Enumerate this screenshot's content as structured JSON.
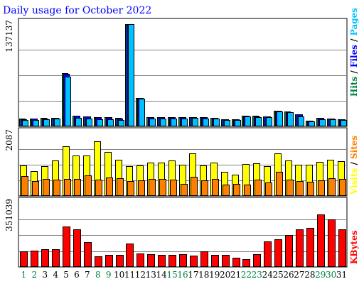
{
  "chart_data": {
    "type": "bar",
    "title": "Daily usage for October 2022",
    "categories": [
      "1",
      "2",
      "3",
      "4",
      "5",
      "6",
      "7",
      "8",
      "9",
      "10",
      "11",
      "12",
      "13",
      "14",
      "15",
      "16",
      "17",
      "18",
      "19",
      "20",
      "21",
      "22",
      "23",
      "24",
      "25",
      "26",
      "27",
      "28",
      "29",
      "30",
      "31"
    ],
    "weekend_days": [
      "1",
      "2",
      "8",
      "9",
      "15",
      "16",
      "22",
      "23",
      "29",
      "30"
    ],
    "panels": [
      {
        "id": "hits-files-pages",
        "axis_label": "137137",
        "ymax": 137137,
        "grid": true,
        "series": [
          {
            "name": "Hits",
            "color": "#008040",
            "values": [
              10100,
              10300,
              11000,
              11700,
              71000,
              14600,
              13500,
              12500,
              12300,
              11000,
              137137,
              38200,
              12700,
              12600,
              12400,
              12500,
              12800,
              12300,
              11800,
              9900,
              9800,
              14100,
              14000,
              13100,
              21200,
              19800,
              16200,
              8000,
              11400,
              10800,
              9600
            ]
          },
          {
            "name": "Files",
            "color": "#0000ff",
            "values": [
              9900,
              10100,
              10800,
              11500,
              70300,
              14400,
              13200,
              12300,
              12100,
              10800,
              136500,
              37800,
              12500,
              12400,
              12200,
              12300,
              12600,
              12100,
              11600,
              9700,
              9600,
              13900,
              13800,
              12900,
              20900,
              19500,
              15900,
              7800,
              11200,
              10600,
              9400
            ]
          },
          {
            "name": "Pages",
            "color": "#00c0ff",
            "values": [
              8100,
              8600,
              9300,
              10600,
              66200,
              11500,
              10800,
              9900,
              9800,
              8900,
              136800,
              36900,
              10700,
              10600,
              10400,
              10500,
              11400,
              10900,
              10100,
              8400,
              8300,
              12900,
              12700,
              12200,
              20100,
              18700,
              13400,
              7000,
              9700,
              9600,
              8800
            ]
          }
        ]
      },
      {
        "id": "visits-sites",
        "axis_label": "2087",
        "ymax": 2087,
        "grid": true,
        "series": [
          {
            "name": "Visits",
            "color": "#ffff00",
            "values": [
              1020,
              830,
              990,
              1180,
              1660,
              1360,
              1340,
              1830,
              1470,
              1220,
              990,
              1020,
              1110,
              1110,
              1190,
              1050,
              1420,
              1020,
              1110,
              810,
              710,
              1070,
              1080,
              1000,
              1430,
              1180,
              1050,
              1040,
              1150,
              1220,
              1170
            ]
          },
          {
            "name": "Sites",
            "color": "#ff8000",
            "values": [
              660,
              490,
              570,
              550,
              560,
              560,
              690,
              550,
              620,
              600,
              500,
              530,
              560,
              580,
              550,
              400,
              640,
              530,
              570,
              380,
              400,
              380,
              550,
              440,
              810,
              550,
              500,
              470,
              530,
              600,
              580
            ]
          }
        ]
      },
      {
        "id": "kbytes",
        "axis_label": "351039",
        "ymax": 351039,
        "grid": true,
        "series": [
          {
            "name": "KBytes",
            "color": "#ff0000",
            "values": [
              84000,
              88000,
              99000,
              97000,
              221000,
              207000,
              136000,
              58000,
              68000,
              68000,
              129000,
              74000,
              70000,
              65000,
              65000,
              70000,
              64000,
              86000,
              68000,
              68000,
              49000,
              43000,
              69000,
              141000,
              154000,
              175000,
              207000,
              216000,
              290000,
              262000,
              206000
            ]
          }
        ]
      }
    ],
    "legend": {
      "top": [
        {
          "text": "Hits",
          "color": "#008040"
        },
        {
          "text": "/",
          "color": "#000000"
        },
        {
          "text": "Files",
          "color": "#0000ff"
        },
        {
          "text": "/",
          "color": "#000000"
        },
        {
          "text": "Pages",
          "color": "#00c0ff"
        }
      ],
      "middle": [
        {
          "text": "Visits",
          "color": "#ffff00"
        },
        {
          "text": "/",
          "color": "#000000"
        },
        {
          "text": "Sites",
          "color": "#ff8000"
        }
      ],
      "bottom": [
        {
          "text": "KBytes",
          "color": "#ff0000"
        }
      ]
    },
    "colors": {
      "title": "#0000ff",
      "weekday_label": "#000000",
      "weekend_label": "#008040",
      "border": "#000000",
      "grid": "#808080"
    }
  }
}
